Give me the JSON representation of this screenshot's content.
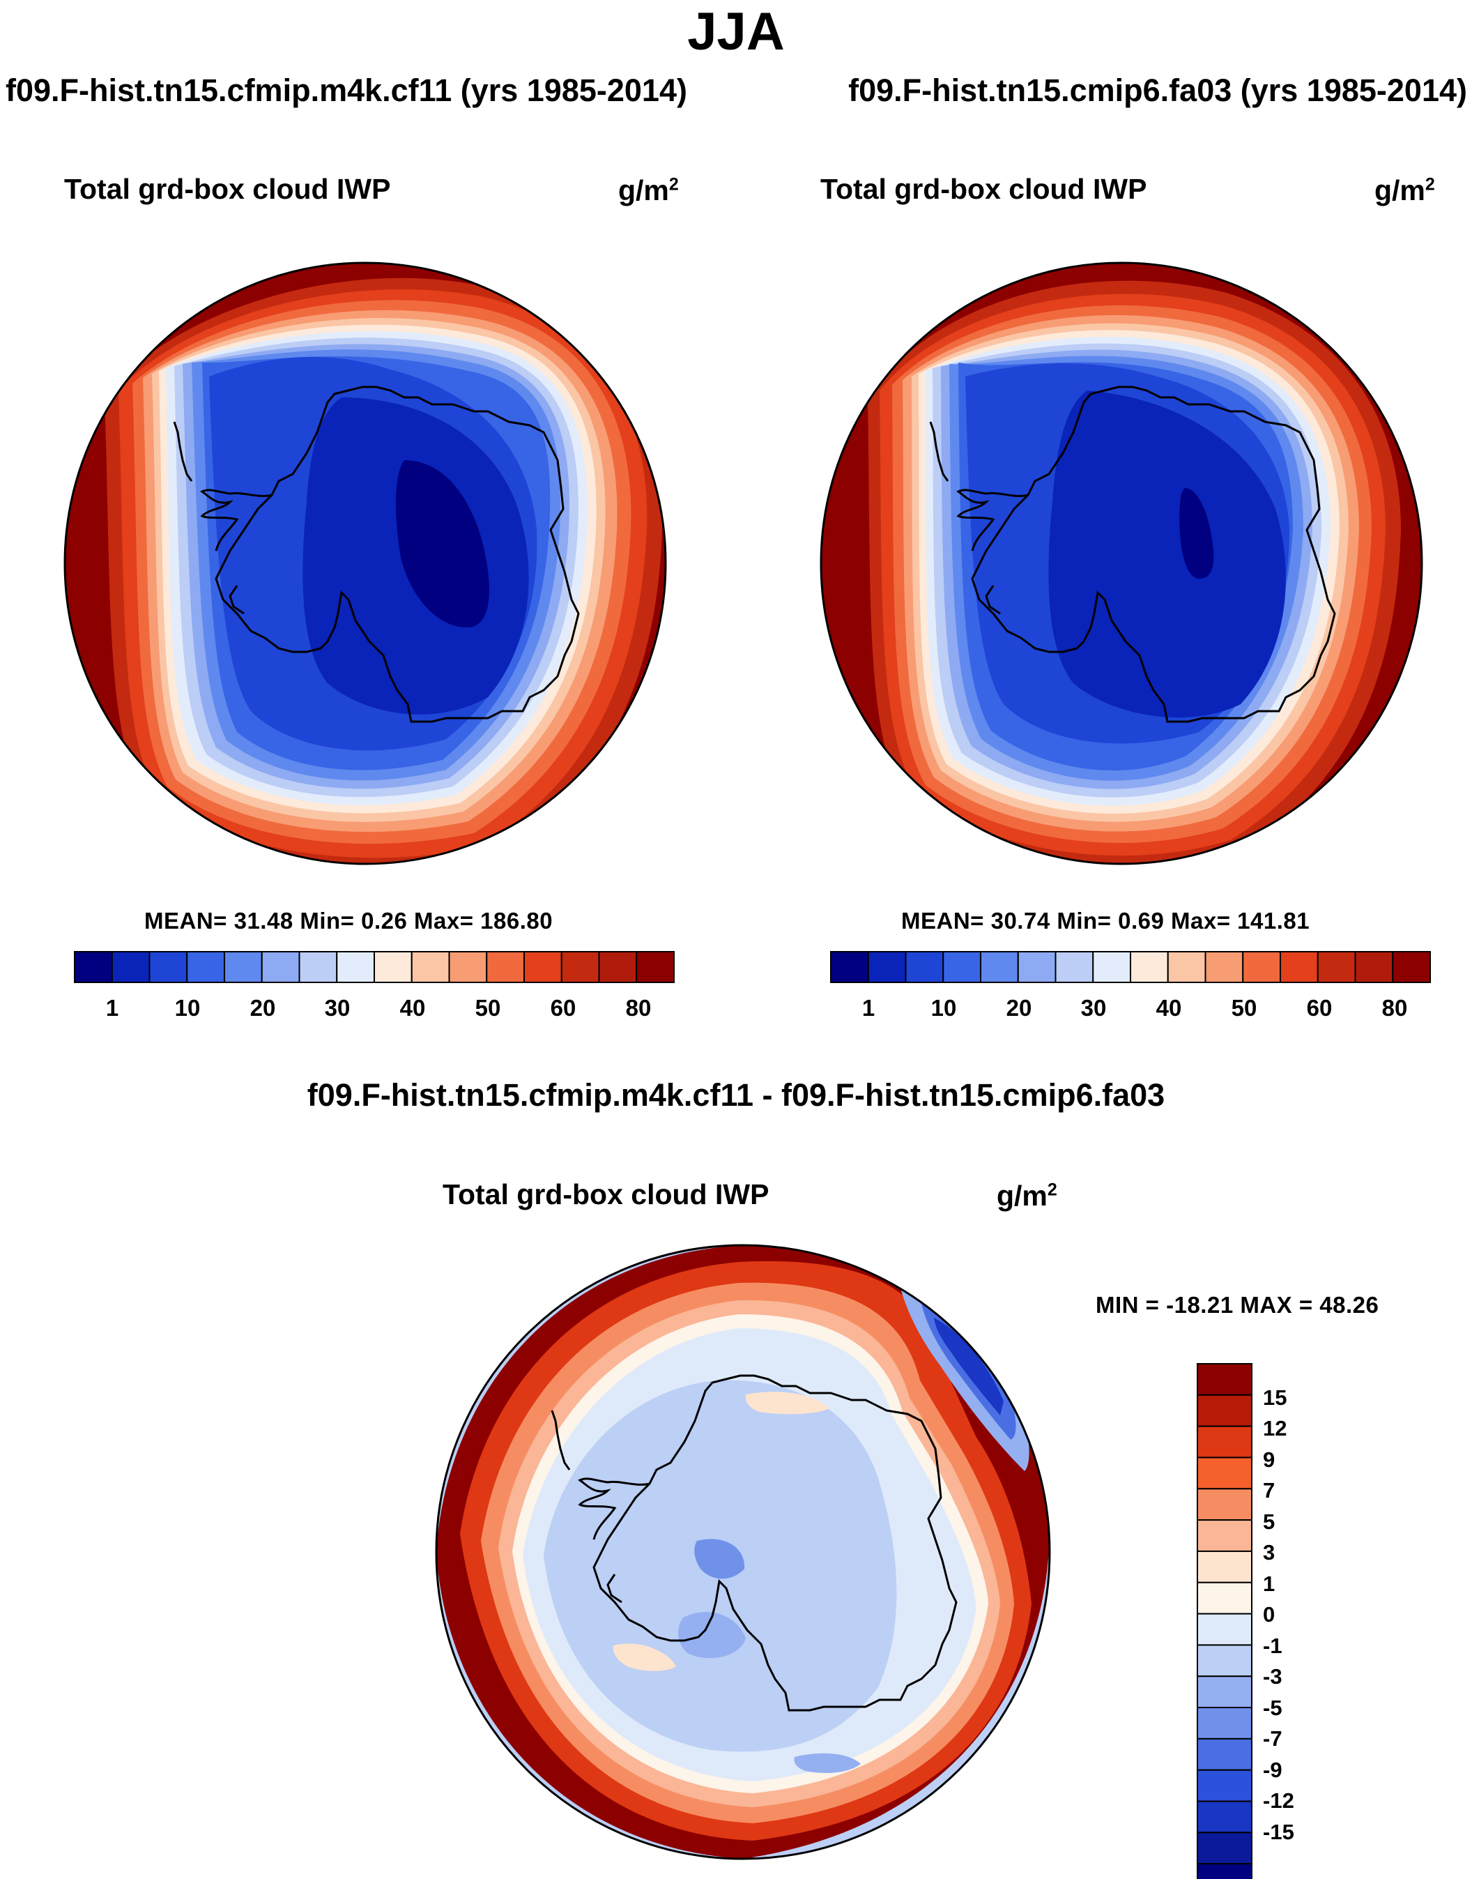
{
  "title": "JJA",
  "panels": [
    {
      "run_title": "f09.F-hist.tn15.cfmip.m4k.cf11 (yrs 1985-2014)",
      "variable": "Total grd-box cloud IWP",
      "units_base": "g/m",
      "units_exp": "2",
      "stats": "MEAN=  31.48  Min=   0.26  Max= 186.80",
      "colorbar_labels": [
        "1",
        "10",
        "20",
        "30",
        "40",
        "50",
        "60",
        "80"
      ],
      "projection": "south-polar stereographic"
    },
    {
      "run_title": "f09.F-hist.tn15.cmip6.fa03 (yrs 1985-2014)",
      "variable": "Total grd-box cloud IWP",
      "units_base": "g/m",
      "units_exp": "2",
      "stats": "MEAN=  30.74  Min=   0.69  Max= 141.81",
      "colorbar_labels": [
        "1",
        "10",
        "20",
        "30",
        "40",
        "50",
        "60",
        "80"
      ],
      "projection": "south-polar stereographic"
    }
  ],
  "difference": {
    "title": "f09.F-hist.tn15.cfmip.m4k.cf11 - f09.F-hist.tn15.cmip6.fa03",
    "variable": "Total grd-box cloud IWP",
    "units_base": "g/m",
    "units_exp": "2",
    "stats": "MIN = -18.21 MAX =  48.26",
    "colorbar_labels": [
      "15",
      "12",
      "9",
      "7",
      "5",
      "3",
      "1",
      "0",
      "-1",
      "-3",
      "-5",
      "-7",
      "-9",
      "-12",
      "-15"
    ]
  },
  "colors": {
    "seq_palette": [
      "#000080",
      "#0a23b8",
      "#1e45d6",
      "#3864e6",
      "#5f89ee",
      "#8daaf2",
      "#bccdf6",
      "#e2ecfb",
      "#fdeadb",
      "#fbc6a6",
      "#f89c74",
      "#f06a3e",
      "#e3401b",
      "#c42a10",
      "#b01c0c",
      "#8c0000"
    ],
    "div_palette": [
      "#8c0000",
      "#b81a08",
      "#df3814",
      "#f5602d",
      "#f68d62",
      "#fab696",
      "#fde4cf",
      "#fdf4ea",
      "#deeafa",
      "#bccff5",
      "#94b0f0",
      "#6f91ea",
      "#4a6fe3",
      "#2c52dc",
      "#1937c4",
      "#0b1a9a",
      "#000080"
    ]
  }
}
